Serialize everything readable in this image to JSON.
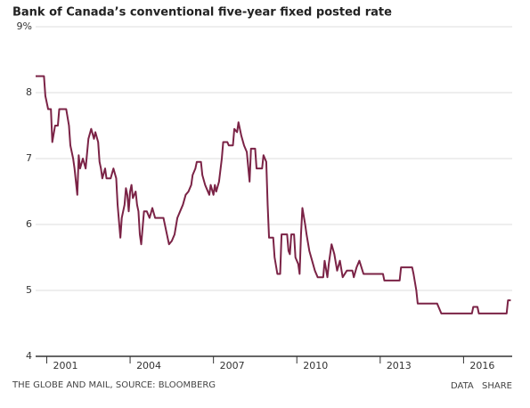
{
  "chart_data": {
    "type": "line",
    "title": "Bank of Canada’s conventional five-year fixed posted rate",
    "color": "#7b2346",
    "grid": true,
    "xlim": [
      2000.6,
      2017.75
    ],
    "xticks": [
      2001,
      2004,
      2007,
      2010,
      2013,
      2016
    ],
    "ylim": [
      4,
      9
    ],
    "yticks": [
      4,
      5,
      6,
      7,
      8,
      {
        "value": 9,
        "label": "9%"
      }
    ],
    "x": [
      2000.6,
      2000.9,
      2000.95,
      2001.05,
      2001.15,
      2001.2,
      2001.3,
      2001.4,
      2001.45,
      2001.7,
      2001.8,
      2001.85,
      2001.95,
      2002.0,
      2002.1,
      2002.15,
      2002.2,
      2002.3,
      2002.4,
      2002.5,
      2002.6,
      2002.7,
      2002.75,
      2002.85,
      2002.9,
      2002.95,
      2003.0,
      2003.1,
      2003.15,
      2003.3,
      2003.4,
      2003.5,
      2003.55,
      2003.6,
      2003.65,
      2003.7,
      2003.8,
      2003.85,
      2003.9,
      2003.95,
      2004.0,
      2004.05,
      2004.1,
      2004.2,
      2004.25,
      2004.3,
      2004.35,
      2004.4,
      2004.45,
      2004.5,
      2004.6,
      2004.7,
      2004.8,
      2004.9,
      2005.2,
      2005.3,
      2005.4,
      2005.5,
      2005.6,
      2005.7,
      2005.8,
      2005.9,
      2006.0,
      2006.1,
      2006.2,
      2006.25,
      2006.35,
      2006.4,
      2006.55,
      2006.6,
      2006.7,
      2006.75,
      2006.85,
      2006.9,
      2007.0,
      2007.05,
      2007.1,
      2007.2,
      2007.3,
      2007.35,
      2007.5,
      2007.55,
      2007.7,
      2007.75,
      2007.85,
      2007.9,
      2008.0,
      2008.1,
      2008.2,
      2008.3,
      2008.35,
      2008.5,
      2008.55,
      2008.75,
      2008.8,
      2008.9,
      2008.95,
      2009.0,
      2009.15,
      2009.2,
      2009.3,
      2009.4,
      2009.45,
      2009.65,
      2009.7,
      2009.75,
      2009.8,
      2009.9,
      2009.95,
      2010.05,
      2010.1,
      2010.15,
      2010.2,
      2010.3,
      2010.35,
      2010.45,
      2010.55,
      2010.65,
      2010.75,
      2010.95,
      2011.0,
      2011.1,
      2011.15,
      2011.25,
      2011.35,
      2011.45,
      2011.55,
      2011.65,
      2011.8,
      2012.0,
      2012.05,
      2012.15,
      2012.25,
      2012.4,
      2013.1,
      2013.15,
      2013.7,
      2013.75,
      2014.15,
      2014.2,
      2014.3,
      2014.35,
      2015.05,
      2015.1,
      2015.2,
      2016.3,
      2016.35,
      2016.5,
      2016.55,
      2017.55,
      2017.6,
      2017.7
    ],
    "values": [
      8.25,
      8.25,
      7.95,
      7.75,
      7.75,
      7.25,
      7.5,
      7.5,
      7.75,
      7.75,
      7.5,
      7.2,
      7.0,
      6.85,
      6.45,
      7.05,
      6.85,
      7.0,
      6.85,
      7.3,
      7.45,
      7.3,
      7.4,
      7.25,
      6.95,
      6.85,
      6.7,
      6.85,
      6.7,
      6.7,
      6.85,
      6.7,
      6.3,
      6.05,
      5.8,
      6.1,
      6.3,
      6.55,
      6.45,
      6.2,
      6.5,
      6.6,
      6.4,
      6.5,
      6.3,
      6.2,
      5.85,
      5.7,
      5.95,
      6.2,
      6.2,
      6.1,
      6.25,
      6.1,
      6.1,
      5.9,
      5.7,
      5.75,
      5.85,
      6.1,
      6.2,
      6.3,
      6.45,
      6.5,
      6.6,
      6.75,
      6.85,
      6.95,
      6.95,
      6.75,
      6.6,
      6.55,
      6.45,
      6.6,
      6.45,
      6.6,
      6.5,
      6.65,
      7.0,
      7.25,
      7.25,
      7.2,
      7.2,
      7.45,
      7.4,
      7.55,
      7.35,
      7.2,
      7.1,
      6.65,
      7.15,
      7.15,
      6.85,
      6.85,
      7.05,
      6.95,
      6.3,
      5.8,
      5.8,
      5.5,
      5.25,
      5.25,
      5.85,
      5.85,
      5.6,
      5.55,
      5.85,
      5.85,
      5.5,
      5.4,
      5.25,
      5.85,
      6.25,
      6.0,
      5.85,
      5.6,
      5.45,
      5.3,
      5.2,
      5.2,
      5.45,
      5.2,
      5.4,
      5.7,
      5.55,
      5.3,
      5.45,
      5.2,
      5.3,
      5.3,
      5.2,
      5.35,
      5.45,
      5.25,
      5.25,
      5.15,
      5.15,
      5.35,
      5.35,
      5.25,
      5.0,
      4.8,
      4.8,
      4.75,
      4.65,
      4.65,
      4.75,
      4.75,
      4.65,
      4.65,
      4.85,
      4.85
    ]
  },
  "footer": {
    "source": "THE GLOBE AND MAIL, SOURCE: BLOOMBERG",
    "links": [
      "DATA",
      "SHARE"
    ]
  }
}
